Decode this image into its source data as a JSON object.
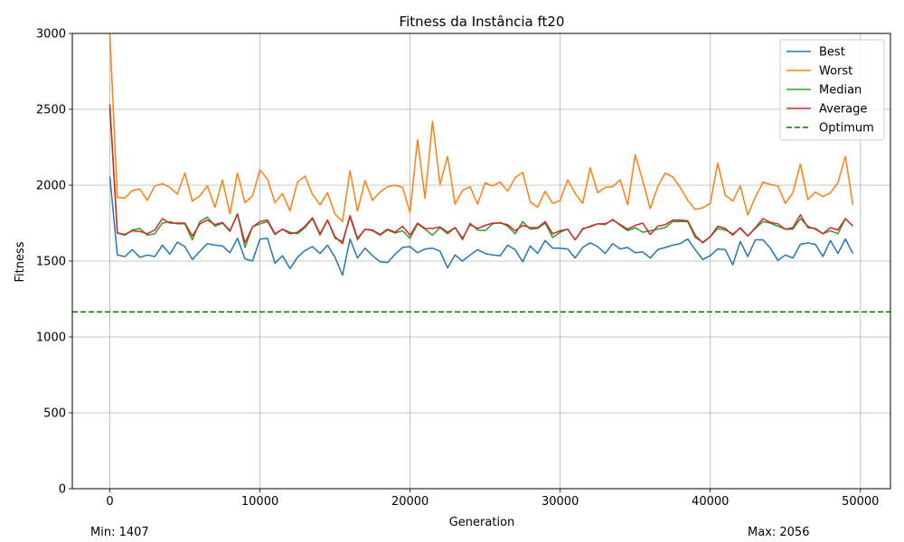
{
  "footer": {
    "min_label": "Min: 1407",
    "max_label": "Max: 2056"
  },
  "colors": {
    "best": "#1f77b4",
    "worst": "#ff7f0e",
    "median": "#2ca02c",
    "average": "#d62728",
    "optimum": "#008000",
    "grid": "#b0b0b0"
  },
  "chart_data": {
    "type": "line",
    "title": "Fitness da Instância ft20",
    "xlabel": "Generation",
    "ylabel": "Fitness",
    "xlim": [
      -2500,
      52000
    ],
    "ylim": [
      0,
      3000
    ],
    "xticks": [
      0,
      10000,
      20000,
      30000,
      40000,
      50000
    ],
    "yticks": [
      0,
      500,
      1000,
      1500,
      2000,
      2500,
      3000
    ],
    "grid": true,
    "legend_position": "top-right",
    "x_start": 0,
    "x_step": 500,
    "optimum": 1165,
    "series": [
      {
        "name": "Best",
        "key": "best",
        "values": [
          2056,
          1540,
          1530,
          1575,
          1525,
          1540,
          1530,
          1605,
          1545,
          1625,
          1595,
          1510,
          1565,
          1615,
          1605,
          1600,
          1555,
          1650,
          1515,
          1500,
          1645,
          1650,
          1485,
          1535,
          1450,
          1525,
          1570,
          1595,
          1550,
          1605,
          1525,
          1407,
          1645,
          1520,
          1585,
          1535,
          1495,
          1490,
          1545,
          1590,
          1595,
          1555,
          1580,
          1585,
          1565,
          1455,
          1540,
          1500,
          1540,
          1575,
          1550,
          1540,
          1535,
          1605,
          1575,
          1495,
          1600,
          1550,
          1635,
          1585,
          1585,
          1580,
          1520,
          1590,
          1620,
          1595,
          1550,
          1615,
          1580,
          1590,
          1555,
          1560,
          1520,
          1575,
          1590,
          1605,
          1615,
          1645,
          1575,
          1510,
          1535,
          1580,
          1575,
          1475,
          1630,
          1530,
          1640,
          1640,
          1585,
          1505,
          1540,
          1520,
          1610,
          1620,
          1610,
          1530,
          1635,
          1550,
          1645,
          1550
        ]
      },
      {
        "name": "Worst",
        "key": "worst",
        "values": [
          3000,
          1920,
          1915,
          1965,
          1975,
          1900,
          1995,
          2010,
          1985,
          1940,
          2080,
          1895,
          1930,
          1995,
          1855,
          2035,
          1810,
          2080,
          1885,
          1930,
          2100,
          2040,
          1885,
          1945,
          1830,
          2020,
          2060,
          1940,
          1870,
          1950,
          1810,
          1760,
          2095,
          1830,
          2030,
          1900,
          1955,
          1990,
          2000,
          1985,
          1820,
          2300,
          1915,
          2420,
          2005,
          2190,
          1875,
          1965,
          1990,
          1875,
          2015,
          1995,
          2020,
          1960,
          2050,
          2085,
          1890,
          1855,
          1960,
          1880,
          1900,
          2035,
          1945,
          1880,
          2115,
          1950,
          1985,
          1990,
          2035,
          1870,
          2200,
          2030,
          1845,
          1990,
          2080,
          2055,
          1985,
          1900,
          1840,
          1850,
          1880,
          2145,
          1935,
          1895,
          1995,
          1805,
          1920,
          2020,
          2005,
          1995,
          1880,
          1950,
          2140,
          1905,
          1955,
          1925,
          1950,
          2015,
          2190,
          1870
        ]
      },
      {
        "name": "Median",
        "key": "median",
        "values": [
          2535,
          1685,
          1670,
          1705,
          1715,
          1670,
          1680,
          1750,
          1760,
          1745,
          1745,
          1640,
          1760,
          1790,
          1730,
          1750,
          1695,
          1810,
          1590,
          1725,
          1745,
          1760,
          1675,
          1710,
          1690,
          1680,
          1720,
          1780,
          1670,
          1770,
          1650,
          1630,
          1790,
          1640,
          1710,
          1700,
          1670,
          1705,
          1685,
          1700,
          1650,
          1745,
          1710,
          1670,
          1720,
          1680,
          1720,
          1640,
          1750,
          1705,
          1700,
          1745,
          1755,
          1730,
          1680,
          1760,
          1710,
          1715,
          1750,
          1655,
          1690,
          1710,
          1640,
          1715,
          1725,
          1745,
          1740,
          1775,
          1735,
          1700,
          1720,
          1690,
          1700,
          1710,
          1720,
          1760,
          1760,
          1760,
          1655,
          1625,
          1660,
          1715,
          1705,
          1680,
          1715,
          1665,
          1715,
          1760,
          1750,
          1730,
          1710,
          1710,
          1780,
          1730,
          1710,
          1680,
          1700,
          1680,
          1780,
          1730
        ]
      },
      {
        "name": "Average",
        "key": "average",
        "values": [
          2520,
          1685,
          1675,
          1700,
          1695,
          1680,
          1705,
          1780,
          1750,
          1750,
          1750,
          1665,
          1745,
          1770,
          1740,
          1755,
          1700,
          1810,
          1620,
          1725,
          1760,
          1770,
          1680,
          1710,
          1680,
          1690,
          1730,
          1785,
          1680,
          1770,
          1660,
          1615,
          1800,
          1650,
          1710,
          1705,
          1675,
          1710,
          1690,
          1730,
          1670,
          1750,
          1715,
          1715,
          1725,
          1690,
          1720,
          1650,
          1740,
          1715,
          1735,
          1750,
          1750,
          1740,
          1700,
          1735,
          1720,
          1720,
          1760,
          1680,
          1700,
          1710,
          1640,
          1710,
          1730,
          1745,
          1745,
          1770,
          1740,
          1710,
          1735,
          1750,
          1675,
          1730,
          1740,
          1770,
          1770,
          1765,
          1670,
          1620,
          1660,
          1730,
          1715,
          1670,
          1720,
          1665,
          1720,
          1780,
          1755,
          1745,
          1710,
          1720,
          1805,
          1720,
          1715,
          1680,
          1720,
          1705,
          1780,
          1730
        ]
      },
      {
        "name": "Optimum",
        "key": "optimum",
        "constant": 1165,
        "style": "dashed"
      }
    ]
  }
}
